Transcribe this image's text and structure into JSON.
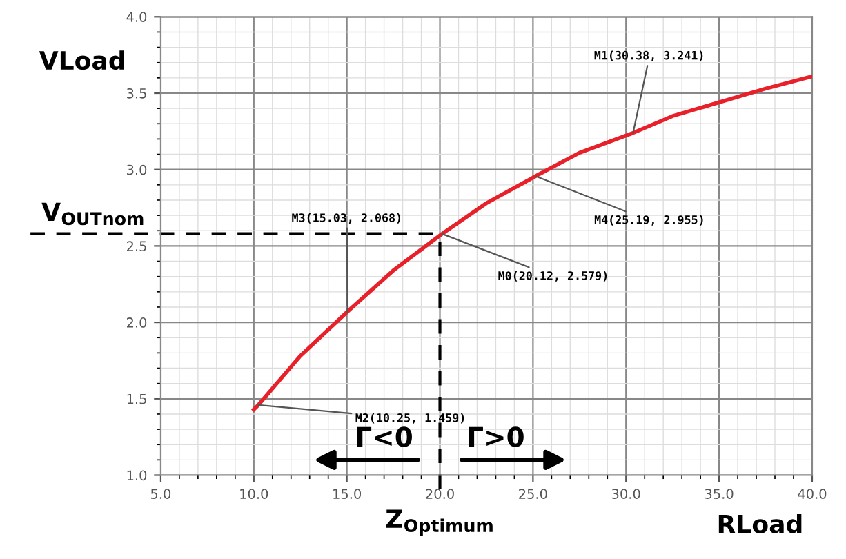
{
  "chart_data": {
    "type": "line",
    "xlabel": "RLoad",
    "ylabel": "VLoad",
    "x": [
      10,
      10.25,
      12.5,
      15.03,
      17.5,
      20.12,
      22.5,
      25.19,
      27.5,
      30.38,
      32.5,
      35,
      37.5,
      40
    ],
    "series": [
      {
        "color": "#e8202a",
        "values": [
          1.43,
          1.46,
          1.78,
          2.07,
          2.34,
          2.58,
          2.78,
          2.96,
          3.11,
          3.24,
          3.35,
          3.44,
          3.53,
          3.61
        ]
      }
    ],
    "xlim": [
      5,
      40
    ],
    "ylim": [
      1,
      4
    ],
    "xticks": [
      {
        "value": 5,
        "label": "5.0"
      },
      {
        "value": 10,
        "label": "10.0"
      },
      {
        "value": 15,
        "label": "15.0"
      },
      {
        "value": 20,
        "label": "20.0"
      },
      {
        "value": 25,
        "label": "25.0"
      },
      {
        "value": 30,
        "label": "30.0"
      },
      {
        "value": 35,
        "label": "35.0"
      },
      {
        "value": 40,
        "label": "40.0"
      }
    ],
    "yticks": [
      {
        "value": 1,
        "label": "1.0"
      },
      {
        "value": 1.5,
        "label": "1.5"
      },
      {
        "value": 2,
        "label": "2.0"
      },
      {
        "value": 2.5,
        "label": "2.5"
      },
      {
        "value": 3,
        "label": "3.0"
      },
      {
        "value": 3.5,
        "label": "3.5"
      },
      {
        "value": 4,
        "label": "4.0"
      }
    ],
    "grid": true,
    "marker": "none",
    "line_style": "solid",
    "ref_lines": [
      {
        "axis": "y",
        "value": 2.58,
        "label": "V$_{OUTnom}$",
        "color": "#000000",
        "line_style": "dashed"
      },
      {
        "axis": "x",
        "value": 20,
        "label": "Z$_{Optimum}$",
        "color": "#000000",
        "line_style": "dashed"
      }
    ],
    "annotations": [
      {
        "text": "M0(20.12, 2.579)",
        "x": 20.12,
        "y": 2.579
      },
      {
        "text": "M1(30.38, 3.241)",
        "x": 30.38,
        "y": 3.241
      },
      {
        "text": "M2(10.25, 1.459)",
        "x": 10.25,
        "y": 1.459
      },
      {
        "text": "M3(15.03, 2.068)",
        "x": 15.03,
        "y": 2.068
      },
      {
        "text": "M4(25.19, 2.955)",
        "x": 25.19,
        "y": 2.955
      },
      "Γ<0",
      "Γ>0"
    ]
  }
}
